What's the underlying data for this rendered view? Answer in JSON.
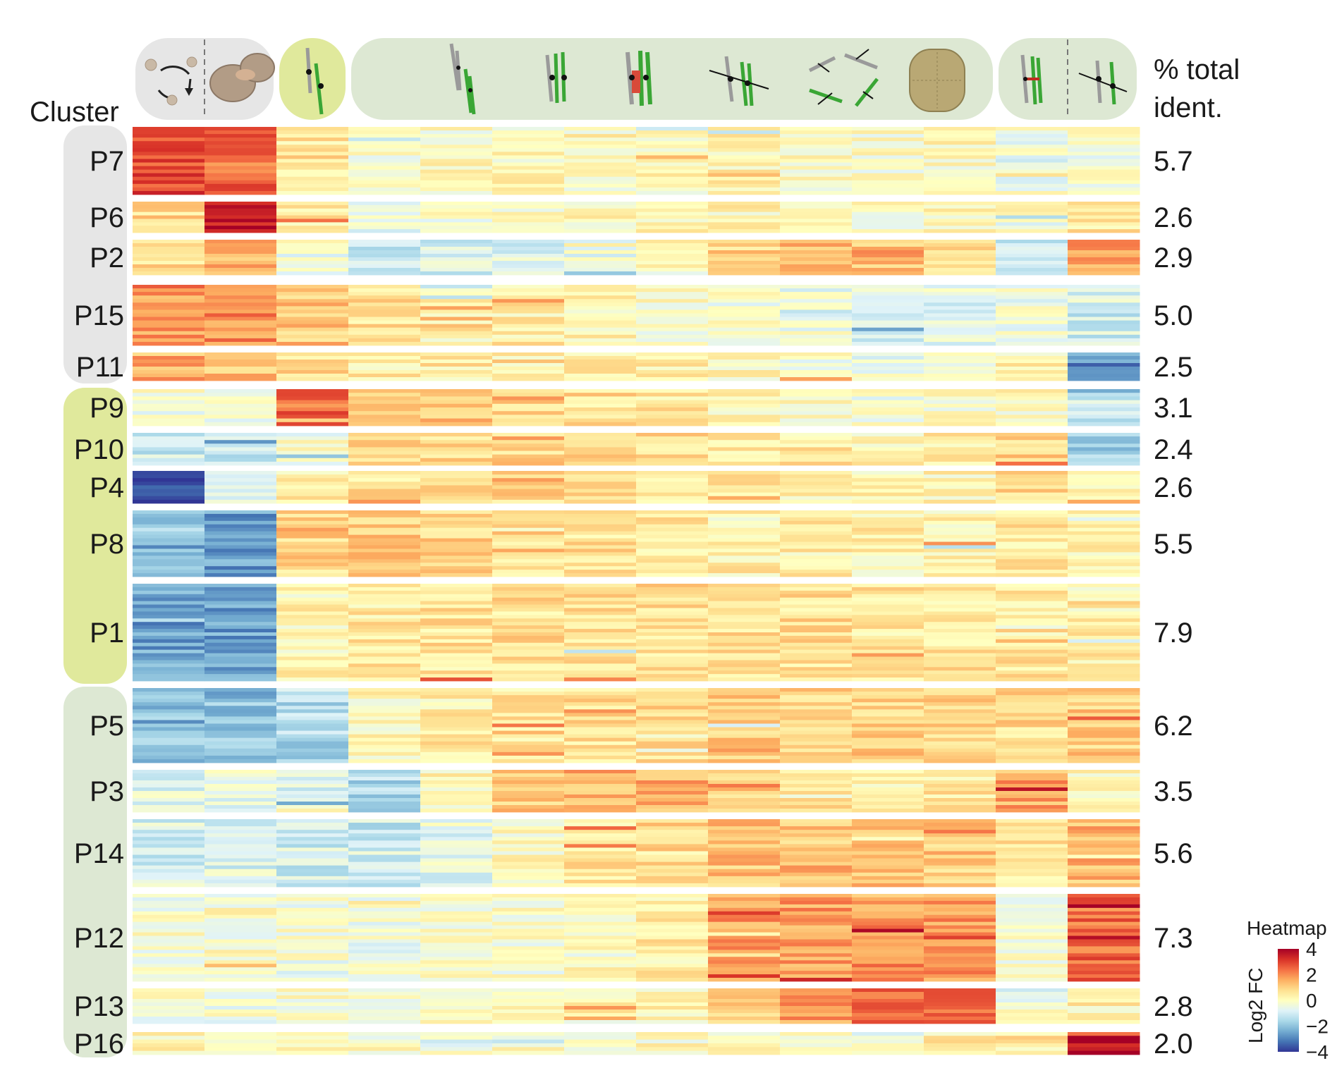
{
  "chart_data": {
    "type": "heatmap",
    "header": {
      "cluster_label": "Cluster",
      "percent_label_line1": "% total",
      "percent_label_line2": "ident."
    },
    "legend": {
      "title": "Heatmap",
      "axis_label": "Log2 FC",
      "ticks": [
        "4",
        "2",
        "0",
        "−2",
        "−4"
      ],
      "tick_values": [
        4,
        2,
        0,
        -2,
        -4
      ],
      "range": [
        -4,
        4
      ],
      "colors": [
        "#313695",
        "#4575b4",
        "#74add1",
        "#abd9e9",
        "#e0f3f8",
        "#ffffbf",
        "#fee090",
        "#fdae61",
        "#f46d43",
        "#d73027",
        "#a50026"
      ]
    },
    "column_groups": [
      {
        "name": "group-1",
        "color": "#e6e6e6",
        "columns": [
          0,
          1
        ]
      },
      {
        "name": "group-2",
        "color": "#e0e99c",
        "columns": [
          2
        ]
      },
      {
        "name": "group-3",
        "color": "#dde8d3",
        "columns": [
          3,
          4,
          5,
          6,
          7,
          8,
          9,
          10,
          11
        ]
      },
      {
        "name": "group-4",
        "color": "#dde8d3",
        "columns": [
          12,
          13
        ]
      }
    ],
    "column_count": 14,
    "cluster_groups": [
      {
        "color": "#e6e6e6",
        "clusters": [
          "P7",
          "P6",
          "P2",
          "P15",
          "P11"
        ]
      },
      {
        "color": "#e0e99c",
        "clusters": [
          "P9",
          "P10",
          "P4",
          "P8",
          "P1"
        ]
      },
      {
        "color": "#dde8d3",
        "clusters": [
          "P5",
          "P3",
          "P14",
          "P12",
          "P13",
          "P16"
        ]
      }
    ],
    "clusters": [
      {
        "name": "P7",
        "percent": "5.7",
        "mean_log2fc": [
          2.8,
          2.6,
          0.6,
          -0.2,
          0.0,
          0.1,
          0.0,
          0.1,
          0.2,
          0.1,
          -0.1,
          0.1,
          -0.3,
          -0.2
        ]
      },
      {
        "name": "P6",
        "percent": "2.6",
        "mean_log2fc": [
          0.8,
          3.6,
          0.4,
          -0.6,
          -0.2,
          0.0,
          0.1,
          0.3,
          0.3,
          0.3,
          0.0,
          0.2,
          0.2,
          0.6
        ]
      },
      {
        "name": "P2",
        "percent": "2.9",
        "mean_log2fc": [
          0.8,
          1.6,
          -0.3,
          -1.0,
          -0.9,
          -0.8,
          -0.5,
          0.0,
          1.0,
          1.3,
          1.2,
          1.0,
          -1.0,
          1.6
        ]
      },
      {
        "name": "P15",
        "percent": "5.0",
        "mean_log2fc": [
          1.8,
          2.0,
          1.2,
          0.7,
          0.5,
          0.4,
          0.2,
          0.0,
          -0.2,
          -0.4,
          -0.9,
          -0.6,
          -0.3,
          -1.0
        ]
      },
      {
        "name": "P11",
        "percent": "2.5",
        "mean_log2fc": [
          1.5,
          1.2,
          0.8,
          0.4,
          0.5,
          0.4,
          0.3,
          0.3,
          0.2,
          -0.2,
          -0.4,
          -0.2,
          0.3,
          -2.8
        ]
      },
      {
        "name": "P9",
        "percent": "3.1",
        "mean_log2fc": [
          -0.2,
          -0.3,
          2.4,
          1.4,
          1.1,
          0.9,
          0.7,
          0.6,
          0.3,
          0.0,
          -0.2,
          0.0,
          0.0,
          -1.1
        ]
      },
      {
        "name": "P10",
        "percent": "2.4",
        "mean_log2fc": [
          -1.1,
          -1.3,
          -0.2,
          0.9,
          0.8,
          0.9,
          1.0,
          0.8,
          0.6,
          0.5,
          0.2,
          0.5,
          1.0,
          -1.8
        ]
      },
      {
        "name": "P4",
        "percent": "2.6",
        "mean_log2fc": [
          -3.8,
          -0.5,
          0.4,
          0.6,
          0.8,
          0.8,
          0.6,
          0.6,
          0.5,
          0.3,
          0.2,
          0.2,
          0.8,
          0.1
        ]
      },
      {
        "name": "P8",
        "percent": "5.5",
        "mean_log2fc": [
          -2.3,
          -2.6,
          0.9,
          1.0,
          0.9,
          0.8,
          0.7,
          0.5,
          0.4,
          0.4,
          0.3,
          0.3,
          0.5,
          0.2
        ]
      },
      {
        "name": "P1",
        "percent": "7.9",
        "mean_log2fc": [
          -2.5,
          -2.6,
          0.2,
          0.5,
          0.6,
          0.7,
          0.7,
          0.7,
          0.7,
          0.7,
          0.6,
          0.6,
          0.5,
          0.5
        ]
      },
      {
        "name": "P5",
        "percent": "6.2",
        "mean_log2fc": [
          -2.0,
          -2.0,
          -1.5,
          0.1,
          0.4,
          0.6,
          0.7,
          0.8,
          1.0,
          1.0,
          1.0,
          1.0,
          0.8,
          1.0
        ]
      },
      {
        "name": "P3",
        "percent": "3.5",
        "mean_log2fc": [
          -0.7,
          -0.5,
          -0.9,
          -1.5,
          0.2,
          1.0,
          1.4,
          1.5,
          1.0,
          0.8,
          0.2,
          0.5,
          1.6,
          0.2
        ]
      },
      {
        "name": "P14",
        "percent": "5.6",
        "mean_log2fc": [
          -0.9,
          -0.8,
          -1.0,
          -1.2,
          -0.6,
          0.1,
          0.6,
          0.9,
          1.2,
          1.3,
          1.2,
          1.1,
          0.6,
          1.4
        ]
      },
      {
        "name": "P12",
        "percent": "7.3",
        "mean_log2fc": [
          -0.2,
          -0.1,
          -0.3,
          -0.3,
          -0.2,
          -0.1,
          0.0,
          0.4,
          1.8,
          1.8,
          1.9,
          1.9,
          -0.2,
          2.4
        ]
      },
      {
        "name": "P13",
        "percent": "2.8",
        "mean_log2fc": [
          -0.3,
          -0.3,
          -0.2,
          -0.1,
          0.0,
          0.0,
          0.1,
          0.2,
          0.8,
          1.8,
          2.4,
          2.5,
          -0.2,
          0.3
        ]
      },
      {
        "name": "P16",
        "percent": "2.0",
        "mean_log2fc": [
          0.2,
          0.2,
          0.0,
          0.0,
          0.0,
          0.0,
          0.0,
          0.0,
          0.1,
          0.1,
          0.0,
          0.4,
          0.6,
          3.6
        ]
      }
    ]
  }
}
